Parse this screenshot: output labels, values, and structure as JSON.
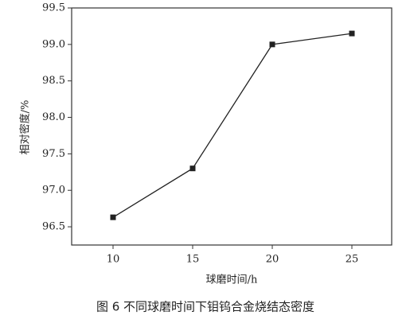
{
  "chart_data": {
    "type": "line",
    "title": "图 6   不同球磨时间下钼钨合金烧结态密度",
    "x_label": "球磨时间/h",
    "y_label": "相对密度/%",
    "x": [
      10,
      15,
      20,
      25
    ],
    "series": [
      {
        "name": "相对密度",
        "color": "#222222",
        "values": [
          96.63,
          97.3,
          99.0,
          99.15
        ]
      }
    ],
    "xlim": [
      7.4,
      27.5
    ],
    "xticks": [
      10,
      15,
      20,
      25
    ],
    "ylim": [
      96.25,
      99.5
    ],
    "yticks": [
      96.5,
      {
        "value": 97,
        "label": "97.0"
      },
      97.5,
      {
        "value": 98,
        "label": "98.0"
      },
      98.5,
      {
        "value": 99,
        "label": "99.0"
      },
      99.5
    ]
  }
}
